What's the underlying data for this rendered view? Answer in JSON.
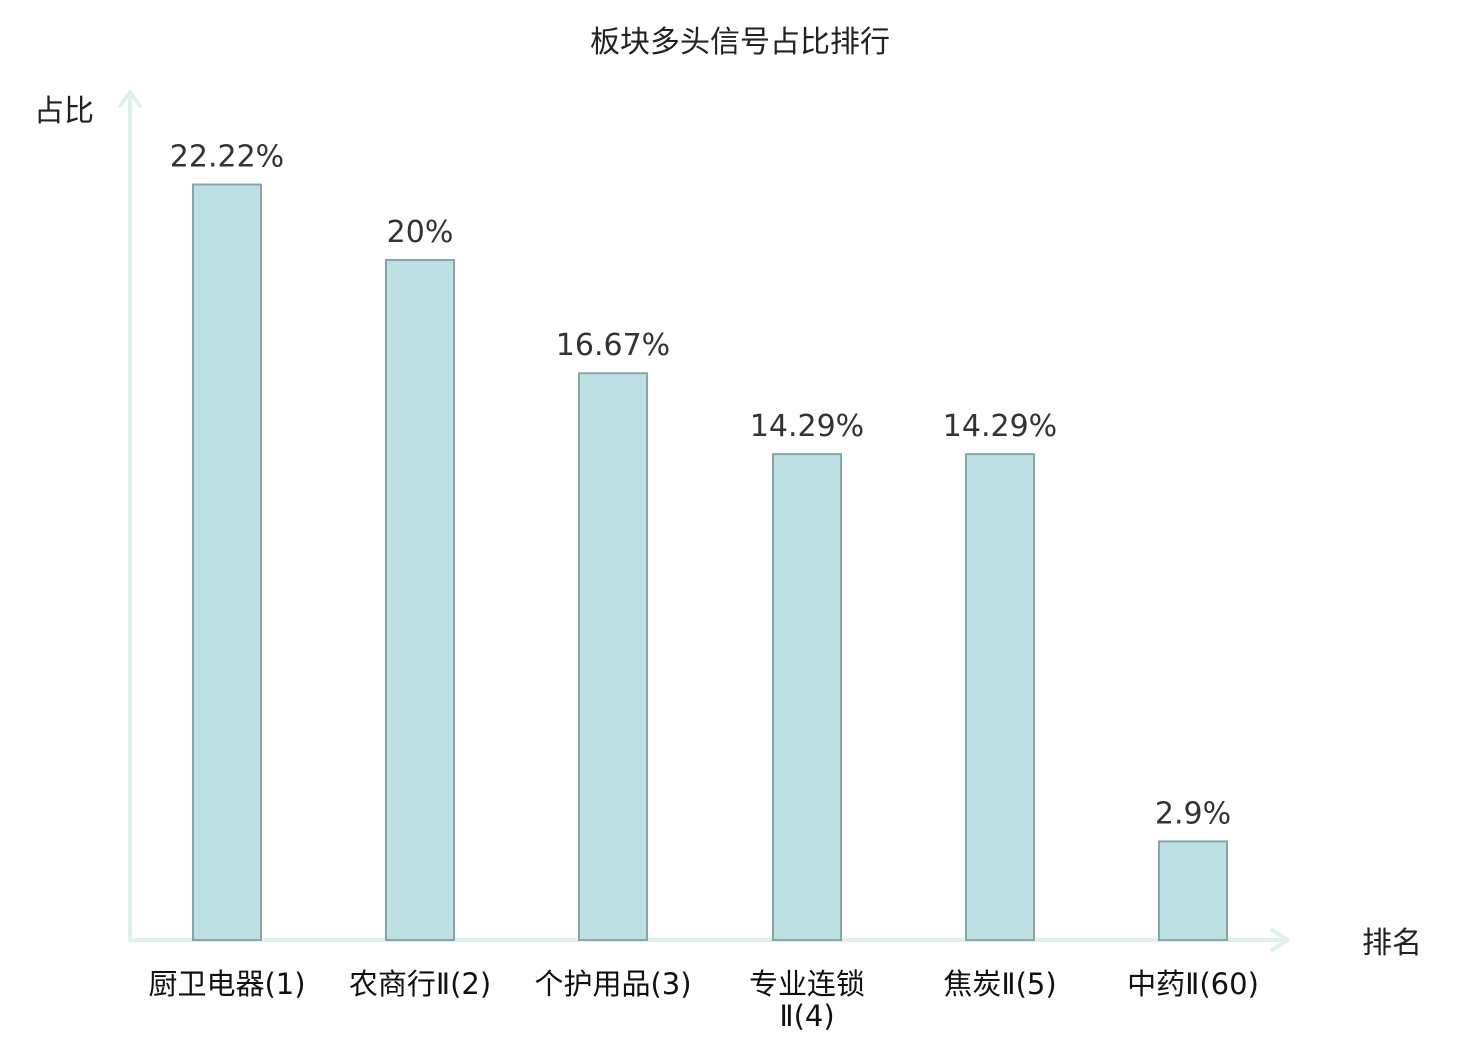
{
  "chart_data": {
    "type": "bar",
    "title": "板块多头信号占比排行",
    "ylabel": "占比",
    "xlabel": "排名",
    "ylim": [
      0,
      25
    ],
    "grid": false,
    "legend": "none",
    "categories": [
      [
        "厨卫电器(1)"
      ],
      [
        "农商行Ⅱ(2)"
      ],
      [
        "个护用品(3)"
      ],
      [
        "专业连锁",
        "Ⅱ(4)"
      ],
      [
        "焦炭Ⅱ(5)"
      ],
      [
        "中药Ⅱ(60)"
      ]
    ],
    "values": [
      22.22,
      20,
      16.67,
      14.29,
      14.29,
      2.9
    ],
    "value_labels": [
      "22.22%",
      "20%",
      "16.67%",
      "14.29%",
      "14.29%",
      "2.9%"
    ],
    "highlight_index": 5,
    "colors": {
      "bar_fill": "#bce0e3",
      "bar_stroke": "#8aa5a8",
      "axis": "#dff1ee",
      "text": "#111111",
      "highlight_text": "#dd1111"
    }
  }
}
